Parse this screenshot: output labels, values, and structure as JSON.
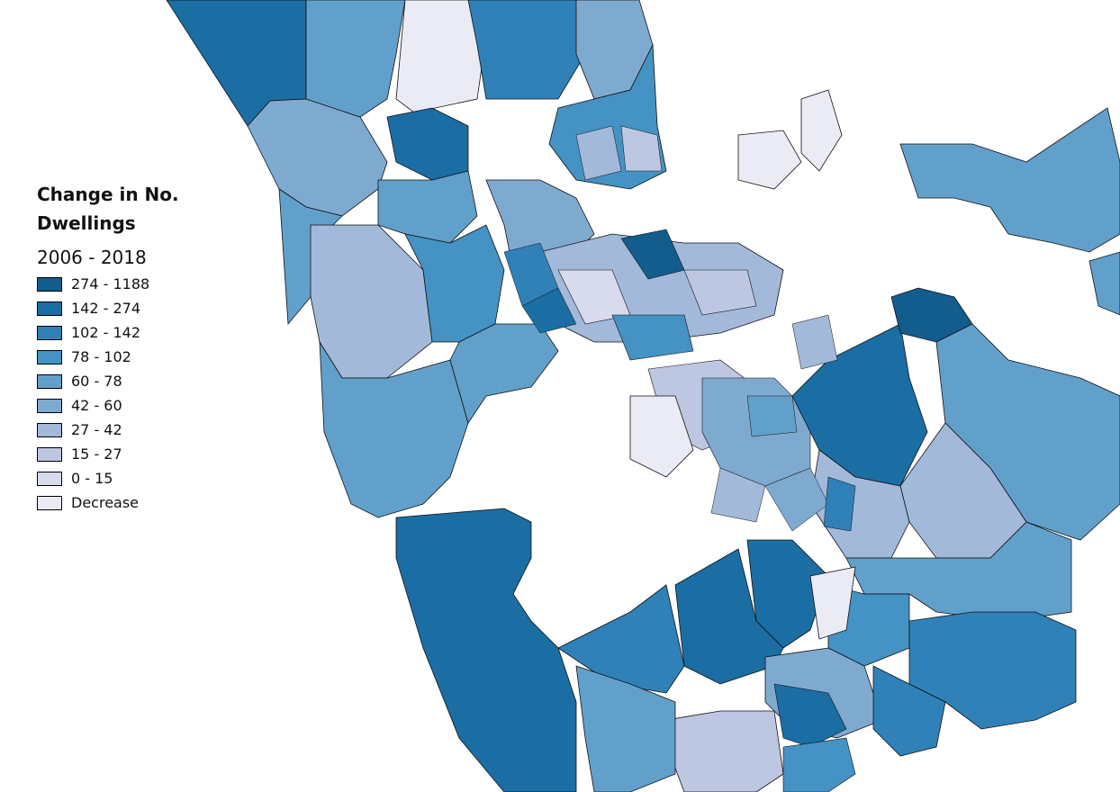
{
  "legend": {
    "title_line1": "Change in No.",
    "title_line2": "Dwellings",
    "subtitle": "2006 - 2018",
    "classes": [
      {
        "label": "274 - 1188",
        "color": "#125d8e"
      },
      {
        "label": "142 - 274",
        "color": "#1a6ea4"
      },
      {
        "label": "102 - 142",
        "color": "#2f81b8"
      },
      {
        "label": "78 - 102",
        "color": "#4592c4"
      },
      {
        "label": "60 - 78",
        "color": "#62a0cc"
      },
      {
        "label": "42 - 60",
        "color": "#7faad0"
      },
      {
        "label": "27 - 42",
        "color": "#a3b9da"
      },
      {
        "label": "15 - 27",
        "color": "#bdc7e2"
      },
      {
        "label": "0 - 15",
        "color": "#d8dbee"
      },
      {
        "label": "Decrease",
        "color": "#ebebf5"
      }
    ]
  },
  "map": {
    "water_color": "#ffffff",
    "outline_color": "#111111"
  }
}
